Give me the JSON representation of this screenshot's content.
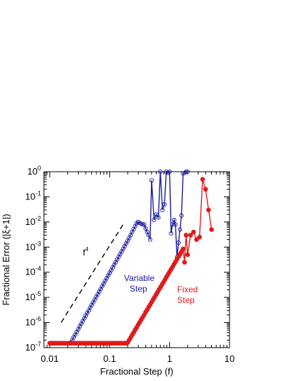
{
  "chart_data": {
    "type": "line",
    "title": "",
    "xlabel": "Fractional Step (f)",
    "ylabel": "Fractional Error (|ξ+1|)",
    "x_scale": "log",
    "y_scale": "log",
    "xlim": [
      0.008,
      10
    ],
    "ylim": [
      1e-07,
      1
    ],
    "x_ticks": [
      {
        "value": 0.01,
        "label": "0.01"
      },
      {
        "value": 0.1,
        "label": "0.1"
      },
      {
        "value": 1,
        "label": "1"
      },
      {
        "value": 10,
        "label": "10"
      }
    ],
    "y_ticks": [
      {
        "value": 1e-07,
        "base": "10",
        "exp": "-7"
      },
      {
        "value": 1e-06,
        "base": "10",
        "exp": "-6"
      },
      {
        "value": 1e-05,
        "base": "10",
        "exp": "-5"
      },
      {
        "value": 0.0001,
        "base": "10",
        "exp": "-4"
      },
      {
        "value": 0.001,
        "base": "10",
        "exp": "-3"
      },
      {
        "value": 0.01,
        "base": "10",
        "exp": "-2"
      },
      {
        "value": 0.1,
        "base": "10",
        "exp": "-1"
      },
      {
        "value": 1,
        "base": "10",
        "exp": "0"
      }
    ],
    "grid": false,
    "series": [
      {
        "label_lines": [
          "Variable",
          "Step"
        ],
        "color": "#1a1aa0",
        "marker": "open-circle",
        "x": [
          0.01,
          0.0106,
          0.0112,
          0.0118,
          0.0125,
          0.0133,
          0.0141,
          0.0149,
          0.0158,
          0.0168,
          0.0178,
          0.0188,
          0.02,
          0.0211,
          0.0224,
          0.0237,
          0.0251,
          0.0266,
          0.0282,
          0.0299,
          0.0316,
          0.0335,
          0.0355,
          0.0376,
          0.0398,
          0.0422,
          0.0447,
          0.0473,
          0.0501,
          0.0531,
          0.0562,
          0.0596,
          0.0631,
          0.0668,
          0.0708,
          0.075,
          0.0794,
          0.0841,
          0.0891,
          0.0944,
          0.1,
          0.1059,
          0.1122,
          0.1189,
          0.1259,
          0.1334,
          0.1413,
          0.1496,
          0.1585,
          0.1679,
          0.1778,
          0.1884,
          0.1995,
          0.2113,
          0.2239,
          0.2371,
          0.2512,
          0.2661,
          0.2818,
          0.2985,
          0.3162,
          0.335,
          0.3548,
          0.3758,
          0.3981,
          0.4217,
          0.4467,
          0.4732,
          0.5012,
          0.55,
          0.6,
          0.65,
          0.7,
          0.76,
          0.82,
          0.88,
          0.94,
          1.0,
          1.06,
          1.12,
          1.19,
          1.25,
          1.33,
          1.41,
          1.49,
          1.58,
          1.68,
          1.78,
          1.88,
          2.0
        ],
        "y": [
          1.5e-07,
          1.5e-07,
          1.5e-07,
          1.5e-07,
          1.5e-07,
          1.5e-07,
          1.5e-07,
          1.5e-07,
          1.5e-07,
          1.5e-07,
          1.5e-07,
          1.5e-07,
          1.5e-07,
          1.5e-07,
          1.6e-07,
          2e-07,
          2.6e-07,
          3.3e-07,
          4.2e-07,
          5.4e-07,
          7e-07,
          8.9e-07,
          1.14e-06,
          1.45e-06,
          1.86e-06,
          2.38e-06,
          3e-06,
          3.9e-06,
          5e-06,
          6.3e-06,
          8.1e-06,
          1.04e-05,
          1.32e-05,
          1.69e-05,
          2.16e-05,
          2.76e-05,
          3.5e-05,
          4.5e-05,
          5.8e-05,
          7.4e-05,
          9.4e-05,
          0.00012,
          0.000154,
          0.000196,
          0.00025,
          0.00032,
          0.00041,
          0.00052,
          0.00067,
          0.00085,
          0.00109,
          0.00139,
          0.00178,
          0.0023,
          0.003,
          0.004,
          0.0052,
          0.0068,
          0.009,
          0.01,
          0.009,
          0.0085,
          0.008,
          0.008,
          0.0055,
          0.004,
          0.003,
          0.002,
          0.45,
          0.012,
          0.02,
          0.015,
          1.0,
          0.03,
          0.05,
          1.0,
          0.9,
          1.0,
          0.0035,
          0.008,
          0.012,
          0.008,
          0.0004,
          0.0015,
          0.005,
          0.018,
          0.85,
          0.9,
          1.0,
          1.0
        ]
      },
      {
        "label_lines": [
          "Fixed",
          "Step"
        ],
        "color": "#e01b1b",
        "marker": "filled-circle",
        "x": [
          0.01,
          0.0106,
          0.0112,
          0.0118,
          0.0125,
          0.0133,
          0.0141,
          0.0149,
          0.0158,
          0.0168,
          0.0178,
          0.0188,
          0.02,
          0.0211,
          0.0224,
          0.0237,
          0.0251,
          0.0266,
          0.0282,
          0.0299,
          0.0316,
          0.0335,
          0.0355,
          0.0376,
          0.0398,
          0.0422,
          0.0447,
          0.0473,
          0.0501,
          0.0531,
          0.0562,
          0.0596,
          0.0631,
          0.0668,
          0.0708,
          0.075,
          0.0794,
          0.0841,
          0.0891,
          0.0944,
          0.1,
          0.1059,
          0.1122,
          0.1189,
          0.1259,
          0.1334,
          0.1413,
          0.1496,
          0.1585,
          0.1679,
          0.1778,
          0.1884,
          0.1995,
          0.2113,
          0.2239,
          0.2371,
          0.2512,
          0.2661,
          0.2818,
          0.2985,
          0.3162,
          0.335,
          0.3548,
          0.3758,
          0.3981,
          0.4217,
          0.4467,
          0.4732,
          0.5012,
          0.5309,
          0.5623,
          0.5957,
          0.631,
          0.6683,
          0.7079,
          0.7499,
          0.7943,
          0.8414,
          0.8913,
          0.9441,
          1.0,
          1.059,
          1.122,
          1.189,
          1.259,
          1.334,
          1.413,
          1.496,
          1.585,
          1.679,
          1.778,
          1.884,
          2.0,
          2.24,
          2.51,
          2.82,
          3.16,
          3.55,
          3.98,
          4.47,
          5.01
        ],
        "y": [
          1.5e-07,
          1.5e-07,
          1.5e-07,
          1.5e-07,
          1.5e-07,
          1.5e-07,
          1.5e-07,
          1.5e-07,
          1.5e-07,
          1.5e-07,
          1.5e-07,
          1.5e-07,
          1.5e-07,
          1.5e-07,
          1.5e-07,
          1.5e-07,
          1.5e-07,
          1.5e-07,
          1.5e-07,
          1.5e-07,
          1.5e-07,
          1.5e-07,
          1.5e-07,
          1.5e-07,
          1.5e-07,
          1.5e-07,
          1.5e-07,
          1.5e-07,
          1.5e-07,
          1.5e-07,
          1.5e-07,
          1.5e-07,
          1.5e-07,
          1.5e-07,
          1.5e-07,
          1.5e-07,
          1.5e-07,
          1.5e-07,
          1.5e-07,
          1.5e-07,
          1.5e-07,
          1.5e-07,
          1.5e-07,
          1.5e-07,
          1.5e-07,
          1.5e-07,
          1.5e-07,
          1.5e-07,
          1.5e-07,
          1.5e-07,
          1.5e-07,
          1.5e-07,
          1.6e-07,
          2e-07,
          2.5e-07,
          3.2e-07,
          4e-07,
          5.1e-07,
          6.4e-07,
          8.1e-07,
          1.02e-06,
          1.28e-06,
          1.62e-06,
          2e-06,
          2.6e-06,
          3.2e-06,
          4.1e-06,
          5.1e-06,
          6.5e-06,
          8.2e-06,
          1.03e-05,
          1.3e-05,
          1.64e-05,
          2.07e-05,
          2.6e-05,
          3.3e-05,
          4.1e-05,
          5.2e-05,
          6.6e-05,
          8.3e-05,
          0.000105,
          0.000132,
          0.000166,
          0.00021,
          0.000265,
          0.000335,
          0.00042,
          0.00053,
          0.00067,
          0.00085,
          0.00025,
          0.003,
          0.0005,
          0.003,
          0.004,
          0.002,
          0.0025,
          0.5,
          0.2,
          0.03,
          0.005
        ]
      }
    ],
    "annotations": [
      {
        "type": "dashed-line",
        "x": [
          0.0155,
          0.178
        ],
        "y": [
          1e-06,
          0.01
        ]
      },
      {
        "type": "text",
        "text": "f",
        "superscript": "4"
      }
    ]
  }
}
